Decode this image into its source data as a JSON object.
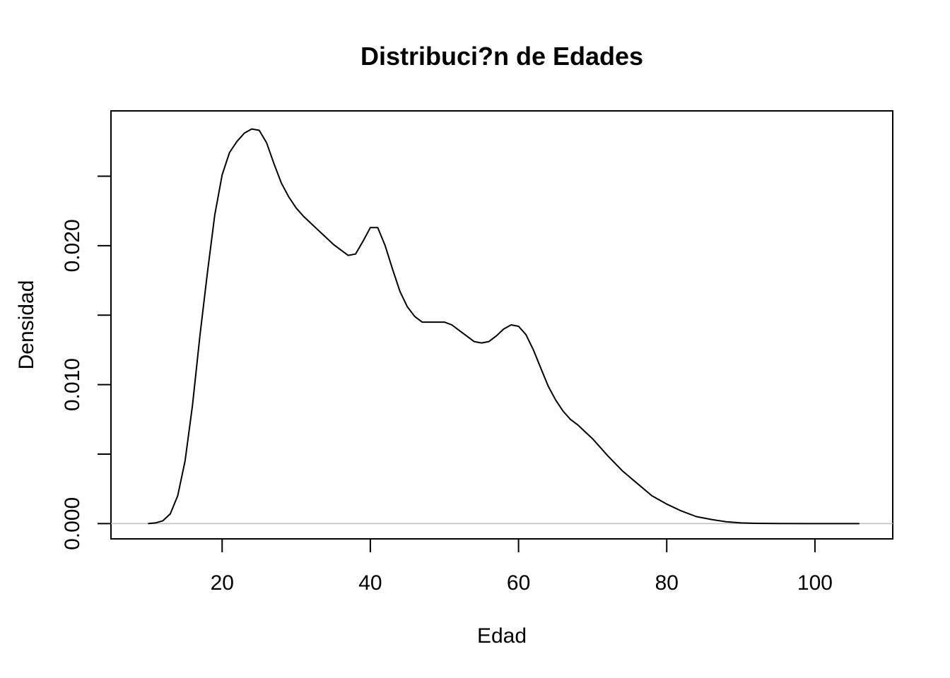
{
  "chart_data": {
    "type": "line",
    "title": "Distribuci?n de Edades",
    "xlabel": "Edad",
    "ylabel": "Densidad",
    "xlim": [
      5,
      110.5
    ],
    "ylim": [
      -0.0011,
      0.0297
    ],
    "x_ticks": [
      20,
      40,
      60,
      80,
      100
    ],
    "x_tick_labels": [
      "20",
      "40",
      "60",
      "80",
      "100"
    ],
    "y_ticks": [
      0.0,
      0.005,
      0.01,
      0.015,
      0.02,
      0.025
    ],
    "y_tick_labels": [
      "0.000",
      "",
      "0.010",
      "",
      "0.020",
      ""
    ],
    "baseline_y": 0,
    "grid": false,
    "legend": "none",
    "series": [
      {
        "x": [
          10,
          11,
          12,
          13,
          14,
          15,
          16,
          17,
          18,
          19,
          20,
          21,
          22,
          23,
          24,
          25,
          26,
          27,
          28,
          29,
          30,
          31,
          32,
          33,
          34,
          35,
          36,
          37,
          38,
          39,
          40,
          41,
          42,
          43,
          44,
          45,
          46,
          47,
          48,
          49,
          50,
          51,
          52,
          53,
          54,
          55,
          56,
          57,
          58,
          59,
          60,
          61,
          62,
          63,
          64,
          65,
          66,
          67,
          68,
          69,
          70,
          72,
          74,
          76,
          78,
          80,
          82,
          84,
          86,
          88,
          90,
          92,
          95,
          100,
          106
        ],
        "y": [
          0.0,
          5e-05,
          0.0002,
          0.0007,
          0.002,
          0.0045,
          0.0085,
          0.0135,
          0.018,
          0.0222,
          0.0251,
          0.0267,
          0.0275,
          0.0281,
          0.0284,
          0.0283,
          0.0274,
          0.0259,
          0.0245,
          0.0235,
          0.0227,
          0.0221,
          0.0216,
          0.0211,
          0.0206,
          0.0201,
          0.0197,
          0.0193,
          0.0194,
          0.0203,
          0.0213,
          0.0213,
          0.02,
          0.0183,
          0.0167,
          0.0156,
          0.0149,
          0.0145,
          0.0145,
          0.0145,
          0.0145,
          0.0143,
          0.0139,
          0.0135,
          0.0131,
          0.013,
          0.0131,
          0.0135,
          0.014,
          0.0143,
          0.0142,
          0.0136,
          0.0125,
          0.0112,
          0.0099,
          0.0089,
          0.0081,
          0.0075,
          0.0071,
          0.0066,
          0.0061,
          0.0049,
          0.0038,
          0.0029,
          0.002,
          0.0014,
          0.0009,
          0.0005,
          0.0003,
          0.00013,
          5e-05,
          2e-05,
          5e-06,
          0.0,
          0.0
        ]
      }
    ]
  }
}
